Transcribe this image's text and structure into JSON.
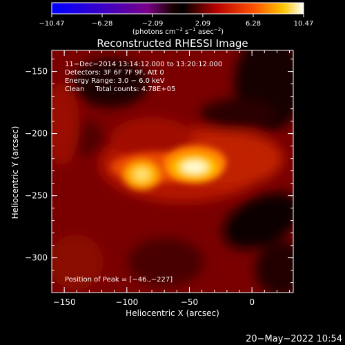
{
  "colorbar": {
    "tick_labels": [
      "−10.47",
      "−6.28",
      "−2.09",
      "2.09",
      "6.28",
      "10.47"
    ],
    "tick_values": [
      -10.47,
      -6.28,
      -2.09,
      2.09,
      6.28,
      10.47
    ],
    "range": [
      -10.47,
      10.47
    ],
    "units_main": "(photons cm",
    "units_exp1": "−2",
    "units_mid": " s",
    "units_exp2": "−1",
    "units_mid2": " asec",
    "units_exp3": "−2",
    "units_end": ")"
  },
  "chart_data": {
    "type": "heatmap",
    "title": "Reconstructed RHESSI Image",
    "xlabel": "Heliocentric X (arcsec)",
    "ylabel": "Heliocentric Y (arcsec)",
    "xlim": [
      -160,
      33
    ],
    "ylim": [
      -328,
      -133
    ],
    "x_ticks": [
      -150,
      -100,
      -50,
      0
    ],
    "x_tick_labels": [
      "−150",
      "−100",
      "−50",
      "0"
    ],
    "y_ticks": [
      -150,
      -200,
      -250,
      -300
    ],
    "y_tick_labels": [
      "−150",
      "−200",
      "−250",
      "−300"
    ],
    "sources": [
      {
        "x": -46,
        "y": -227,
        "amplitude": 10.47
      },
      {
        "x": -88,
        "y": -233,
        "amplitude": 8.2
      }
    ],
    "annotations": [
      "11−Dec−2014 13:14:12.000 to 13:20:12.000",
      "Detectors: 3F 6F 7F 9F, Att 0",
      "Energy Range: 3.0 − 6.0 keV",
      "Clean     Total counts: 4.78E+05"
    ],
    "peak_label": "Position of Peak = [−46.,−227]"
  },
  "footer": {
    "timestamp": "20−May−2022 10:54"
  }
}
